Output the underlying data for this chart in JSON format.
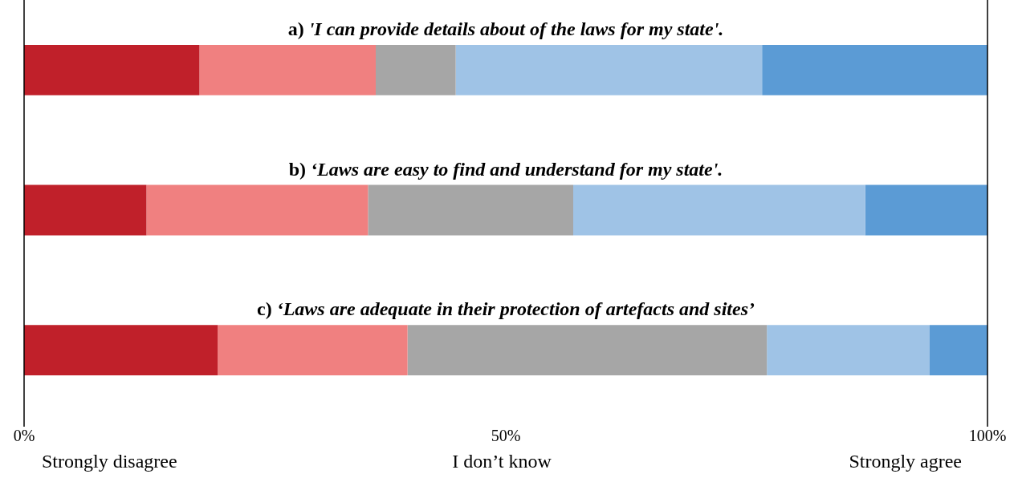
{
  "chart_data": {
    "type": "bar",
    "orientation": "horizontal",
    "stacked": true,
    "categories": [
      "a) 'I can provide details about of the laws for my state'.",
      "b) ‘Laws are easy to find and understand for my state'.",
      "c) ‘Laws are adequate in their protection of artefacts and sites’"
    ],
    "series": [
      {
        "color": "#c0202a",
        "values": [
          18.2,
          12.7,
          20.1
        ]
      },
      {
        "color": "#f08080",
        "values": [
          18.3,
          23.0,
          19.7
        ]
      },
      {
        "color": "#a6a6a6",
        "values": [
          8.3,
          21.3,
          37.3
        ]
      },
      {
        "color": "#9fc3e6",
        "values": [
          31.8,
          30.3,
          16.9
        ]
      },
      {
        "color": "#5b9bd5",
        "values": [
          23.4,
          12.7,
          6.0
        ]
      }
    ],
    "xlim": [
      0,
      100
    ],
    "xticks": [
      {
        "value": 0,
        "label": "0%"
      },
      {
        "value": 50,
        "label": "50%"
      },
      {
        "value": 100,
        "label": "100%"
      }
    ],
    "annotations": [
      "Strongly disagree",
      "I don’t know",
      "Strongly agree"
    ],
    "grid": false,
    "legend": false
  }
}
